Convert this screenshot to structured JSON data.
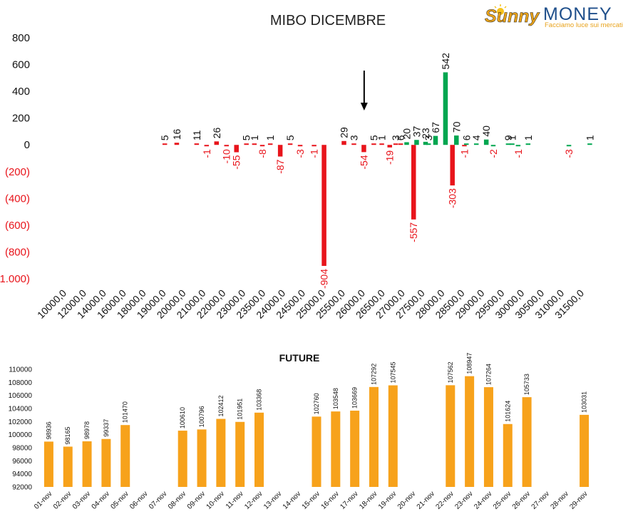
{
  "logo": {
    "brand_1": "Sunny",
    "brand_2": "MONEY",
    "tagline": "Facciamo luce sui mercati",
    "colors": {
      "sunny": "#e8a21a",
      "money": "#1f4f8b"
    }
  },
  "chart_data": [
    {
      "type": "bar",
      "title": "MIBO DICEMBRE",
      "xlabel": "",
      "ylabel": "",
      "ylim": [
        -1000,
        800
      ],
      "yticks": [
        {
          "value": 800,
          "label": "800"
        },
        {
          "value": 600,
          "label": "600"
        },
        {
          "value": 400,
          "label": "400"
        },
        {
          "value": 200,
          "label": "200"
        },
        {
          "value": 0,
          "label": "0"
        },
        {
          "value": -200,
          "label": "(200)"
        },
        {
          "value": -400,
          "label": "(400)"
        },
        {
          "value": -600,
          "label": "(600)"
        },
        {
          "value": -800,
          "label": "(800)"
        },
        {
          "value": -1000,
          "label": "(1.000)"
        }
      ],
      "categories": [
        "10000,0",
        "12000,0",
        "14000,0",
        "16000,0",
        "18000,0",
        "19000,0",
        "20000,0",
        "21000,0",
        "22000,0",
        "23000,0",
        "23500,0",
        "24000,0",
        "24500,0",
        "25000,0",
        "25500,0",
        "26000,0",
        "26500,0",
        "27000,0",
        "27500,0",
        "28000,0",
        "28500,0",
        "29000,0",
        "29500,0",
        "30000,0",
        "30500,0",
        "31000,0",
        "31500,0"
      ],
      "positive_color": "#00a650",
      "negative_color": "#e8141b",
      "bars": [
        {
          "x": 5.2,
          "value": 5,
          "color": "red"
        },
        {
          "x": 5.8,
          "value": 16,
          "color": "red"
        },
        {
          "x": 6.8,
          "value": 11,
          "color": "red"
        },
        {
          "x": 7.3,
          "value": -1,
          "color": "red"
        },
        {
          "x": 7.8,
          "value": 26,
          "color": "red"
        },
        {
          "x": 8.3,
          "value": -10,
          "color": "red"
        },
        {
          "x": 8.8,
          "value": -55,
          "color": "red"
        },
        {
          "x": 9.3,
          "value": 5,
          "color": "red"
        },
        {
          "x": 9.7,
          "value": 1,
          "color": "red"
        },
        {
          "x": 10.1,
          "value": -8,
          "color": "red"
        },
        {
          "x": 10.5,
          "value": 1,
          "color": "red"
        },
        {
          "x": 11.0,
          "value": -87,
          "color": "red"
        },
        {
          "x": 11.5,
          "value": 5,
          "color": "red"
        },
        {
          "x": 12.0,
          "value": -3,
          "color": "red"
        },
        {
          "x": 12.7,
          "value": -1,
          "color": "red"
        },
        {
          "x": 13.2,
          "value": -904,
          "color": "red"
        },
        {
          "x": 14.2,
          "value": 29,
          "color": "red"
        },
        {
          "x": 14.7,
          "value": 3,
          "color": "red"
        },
        {
          "x": 15.2,
          "value": -54,
          "color": "red"
        },
        {
          "x": 15.7,
          "value": 5,
          "color": "red"
        },
        {
          "x": 16.1,
          "value": 1,
          "color": "red"
        },
        {
          "x": 16.5,
          "value": -19,
          "color": "red"
        },
        {
          "x": 16.8,
          "value": 3,
          "color": "red"
        },
        {
          "x": 17.05,
          "value": 6,
          "color": "red"
        },
        {
          "x": 17.35,
          "value": 20,
          "color": "green"
        },
        {
          "x": 17.7,
          "value": -557,
          "color": "red"
        },
        {
          "x": 17.85,
          "value": 37,
          "color": "green"
        },
        {
          "x": 18.3,
          "value": 23,
          "color": "green"
        },
        {
          "x": 18.45,
          "value": 3,
          "color": "green"
        },
        {
          "x": 18.8,
          "value": 67,
          "color": "green"
        },
        {
          "x": 19.3,
          "value": 542,
          "color": "green"
        },
        {
          "x": 19.65,
          "value": -303,
          "color": "red"
        },
        {
          "x": 19.85,
          "value": 70,
          "color": "green"
        },
        {
          "x": 20.25,
          "value": -1,
          "color": "red"
        },
        {
          "x": 20.35,
          "value": 6,
          "color": "green"
        },
        {
          "x": 20.85,
          "value": 4,
          "color": "green"
        },
        {
          "x": 21.35,
          "value": 40,
          "color": "green"
        },
        {
          "x": 21.7,
          "value": -2,
          "color": "green"
        },
        {
          "x": 22.45,
          "value": 9,
          "color": "green"
        },
        {
          "x": 22.65,
          "value": 1,
          "color": "green"
        },
        {
          "x": 22.95,
          "value": -1,
          "color": "green"
        },
        {
          "x": 23.45,
          "value": 1,
          "color": "green"
        },
        {
          "x": 25.5,
          "value": -3,
          "color": "green"
        },
        {
          "x": 26.55,
          "value": 1,
          "color": "green"
        }
      ],
      "annotation": {
        "type": "arrow-down",
        "category": "26000,0"
      }
    },
    {
      "type": "bar",
      "title": "FUTURE",
      "xlabel": "",
      "ylabel": "",
      "ylim": [
        92000,
        110000
      ],
      "yticks": [
        92000,
        94000,
        96000,
        98000,
        100000,
        102000,
        104000,
        106000,
        108000,
        110000
      ],
      "bar_color": "#f7a21b",
      "categories": [
        "01-nov",
        "02-nov",
        "03-nov",
        "04-nov",
        "05-nov",
        "06-nov",
        "07-nov",
        "08-nov",
        "09-nov",
        "10-nov",
        "11-nov",
        "12-nov",
        "13-nov",
        "14-nov",
        "15-nov",
        "16-nov",
        "17-nov",
        "18-nov",
        "19-nov",
        "20-nov",
        "21-nov",
        "22-nov",
        "23-nov",
        "24-nov",
        "25-nov",
        "26-nov",
        "27-nov",
        "28-nov",
        "29-nov"
      ],
      "values": [
        98936,
        98165,
        98978,
        99337,
        101470,
        null,
        null,
        100610,
        100796,
        102412,
        101951,
        103368,
        null,
        null,
        102760,
        103548,
        103669,
        107292,
        107545,
        null,
        null,
        107562,
        108947,
        107264,
        101624,
        105733,
        null,
        null,
        103031
      ]
    }
  ]
}
